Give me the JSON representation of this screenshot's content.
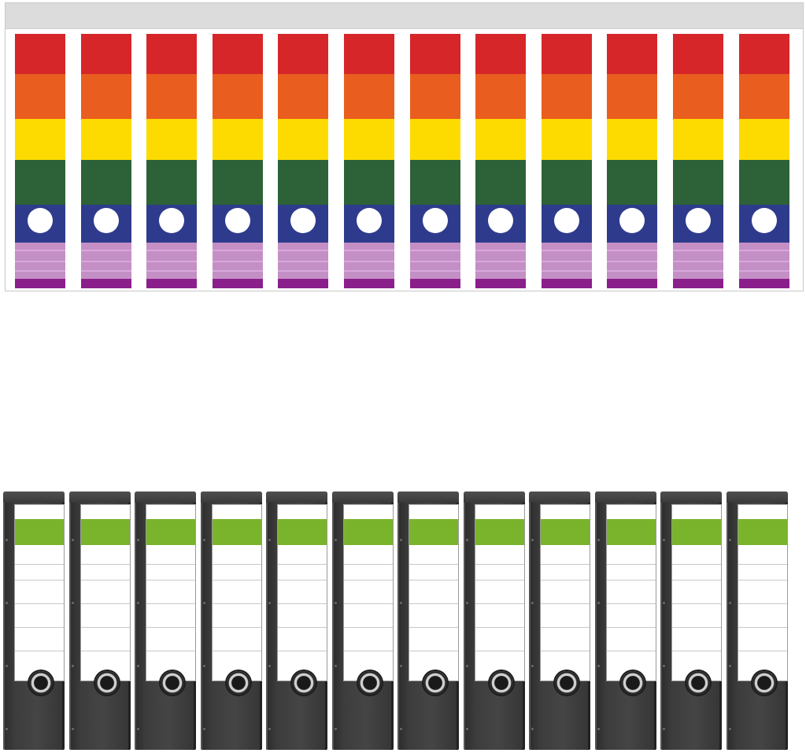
{
  "label_sheet": {
    "label_count": 12,
    "stripe_colors": [
      "#d6262a",
      "#e95e1e",
      "#fddb00",
      "#2d6238",
      "#2e3b8d",
      "#c48fc5",
      "#8a1f8c"
    ],
    "hole_color": "#ffffff"
  },
  "binders": {
    "count": 12,
    "body_color": "#3a3a3a",
    "label_band_color": "#7ab32c",
    "card_color": "#ffffff"
  }
}
